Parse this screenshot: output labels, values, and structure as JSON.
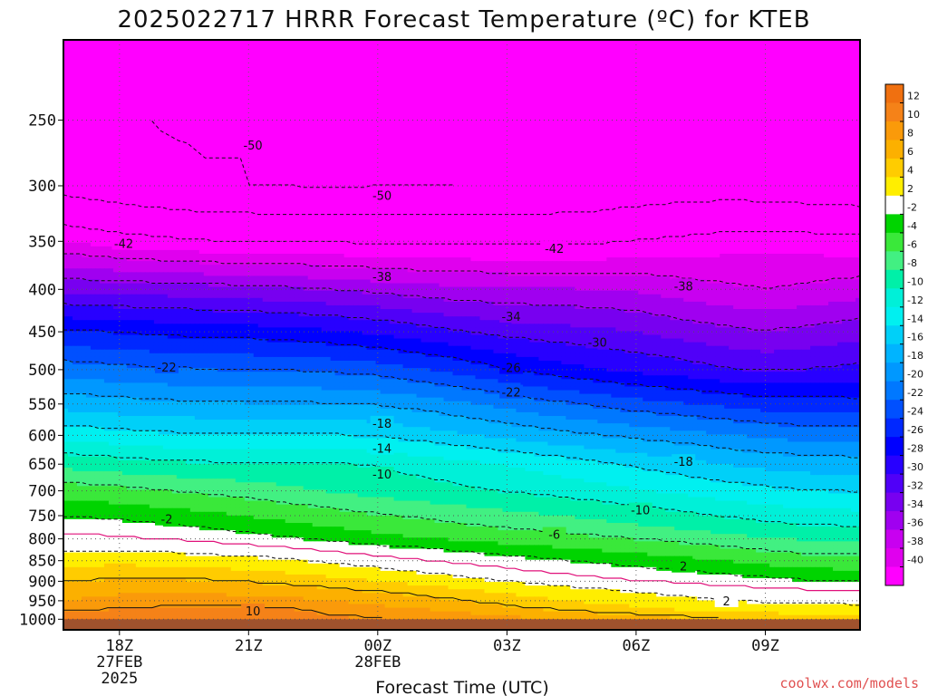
{
  "chart_data": {
    "type": "contour",
    "title": "2025022717 HRRR Forecast Temperature (ºC) for KTEB",
    "xlabel": "Forecast Time (UTC)",
    "ylabel": "",
    "credit": "coolwx.com/models",
    "y_axis": {
      "scale": "pressure",
      "range": [
        1000,
        200
      ],
      "ticks": [
        250,
        300,
        350,
        400,
        450,
        500,
        550,
        600,
        650,
        700,
        750,
        800,
        850,
        900,
        950,
        1000
      ]
    },
    "x_axis": {
      "range_hours": [
        -0.3,
        18.2
      ],
      "ticks": [
        {
          "hour": 1,
          "line1": "18Z",
          "line2": "27FEB",
          "line3": "2025"
        },
        {
          "hour": 4,
          "line1": "21Z",
          "line2": "",
          "line3": ""
        },
        {
          "hour": 7,
          "line1": "00Z",
          "line2": "28FEB",
          "line3": ""
        },
        {
          "hour": 10,
          "line1": "03Z",
          "line2": "",
          "line3": ""
        },
        {
          "hour": 13,
          "line1": "06Z",
          "line2": "",
          "line3": ""
        },
        {
          "hour": 16,
          "line1": "09Z",
          "line2": "",
          "line3": ""
        }
      ]
    },
    "grid": true,
    "colorbar": {
      "placement": "right",
      "unit": "ºC",
      "bins": [
        {
          "low": 12,
          "high": 14,
          "color": "#f07010"
        },
        {
          "low": 10,
          "high": 12,
          "color": "#f58218"
        },
        {
          "low": 8,
          "high": 10,
          "color": "#fa9a0a"
        },
        {
          "low": 6,
          "high": 8,
          "color": "#fcb000"
        },
        {
          "low": 4,
          "high": 6,
          "color": "#ffcc00"
        },
        {
          "low": 2,
          "high": 4,
          "color": "#ffee00"
        },
        {
          "low": -2,
          "high": 2,
          "color": "#ffffff"
        },
        {
          "low": -4,
          "high": -2,
          "color": "#00d400"
        },
        {
          "low": -6,
          "high": -4,
          "color": "#3ae83a"
        },
        {
          "low": -8,
          "high": -6,
          "color": "#42f082"
        },
        {
          "low": -10,
          "high": -8,
          "color": "#00f0a8"
        },
        {
          "low": -12,
          "high": -10,
          "color": "#00f0d8"
        },
        {
          "low": -14,
          "high": -12,
          "color": "#00f0f0"
        },
        {
          "low": -16,
          "high": -14,
          "color": "#00d0f8"
        },
        {
          "low": -18,
          "high": -16,
          "color": "#00b4ff"
        },
        {
          "low": -20,
          "high": -18,
          "color": "#0098ff"
        },
        {
          "low": -22,
          "high": -20,
          "color": "#0078ff"
        },
        {
          "low": -24,
          "high": -22,
          "color": "#0050ff"
        },
        {
          "low": -26,
          "high": -24,
          "color": "#0028ff"
        },
        {
          "low": -28,
          "high": -26,
          "color": "#0000ff"
        },
        {
          "low": -30,
          "high": -28,
          "color": "#2800ff"
        },
        {
          "low": -32,
          "high": -30,
          "color": "#5000f8"
        },
        {
          "low": -34,
          "high": -32,
          "color": "#7800f0"
        },
        {
          "low": -36,
          "high": -34,
          "color": "#a000f0"
        },
        {
          "low": -38,
          "high": -36,
          "color": "#c800f0"
        },
        {
          "low": -40,
          "high": -38,
          "color": "#e000ee"
        },
        {
          "low": -60,
          "high": -40,
          "color": "#ff00ff"
        }
      ],
      "tick_labels": [
        "12",
        "10",
        "8",
        "6",
        "4",
        "2",
        "-2",
        "-4",
        "-6",
        "-8",
        "-10",
        "-12",
        "-14",
        "-16",
        "-18",
        "-20",
        "-22",
        "-24",
        "-26",
        "-28",
        "-30",
        "-32",
        "-34",
        "-36",
        "-38",
        "-40"
      ]
    },
    "ground_color": "#a0522d",
    "temperature_field": {
      "hours": [
        -0.3,
        1,
        2,
        3,
        4,
        5,
        6,
        7,
        8,
        9,
        10,
        11,
        12,
        13,
        14,
        15,
        16,
        17,
        18.2
      ],
      "levels_hpa": [
        1000,
        975,
        950,
        925,
        900,
        875,
        850,
        825,
        800,
        775,
        750,
        700,
        650,
        600,
        550,
        500,
        450,
        400,
        350,
        300,
        250,
        200
      ],
      "temps_c": [
        [
          12.0,
          12.0,
          11.6,
          11.3,
          11.0,
          10.6,
          10.3,
          10.1,
          9.6,
          9.2,
          8.7,
          8.1,
          7.5,
          7.0,
          6.5,
          6.0,
          5.7,
          5.5,
          5.3
        ],
        [
          9.5,
          10.2,
          10.4,
          10.6,
          10.5,
          10.1,
          9.5,
          8.8,
          8.2,
          7.5,
          6.7,
          6.0,
          5.3,
          4.6,
          4.0,
          3.5,
          3.2,
          3.0,
          2.8
        ],
        [
          8.0,
          8.7,
          9.0,
          9.0,
          8.8,
          8.5,
          8.0,
          7.3,
          6.7,
          6.0,
          5.0,
          4.3,
          3.6,
          3.0,
          2.5,
          2.0,
          1.6,
          1.3,
          1.2
        ],
        [
          7.0,
          7.6,
          7.7,
          7.6,
          7.3,
          6.9,
          6.4,
          5.8,
          5.1,
          4.4,
          3.6,
          2.9,
          2.3,
          1.8,
          1.3,
          0.8,
          0.4,
          0.1,
          0.0
        ],
        [
          5.8,
          6.3,
          6.3,
          6.1,
          5.8,
          5.3,
          4.7,
          4.0,
          3.3,
          2.6,
          1.8,
          1.2,
          0.6,
          0.0,
          -0.5,
          -1.0,
          -1.5,
          -2.0,
          -2.2
        ],
        [
          4.5,
          4.9,
          4.8,
          4.5,
          4.2,
          3.7,
          3.0,
          2.4,
          1.7,
          1.0,
          0.3,
          -0.4,
          -1.0,
          -1.5,
          -2.0,
          -2.6,
          -3.1,
          -3.6,
          -3.8
        ],
        [
          3.3,
          3.4,
          3.2,
          2.9,
          2.6,
          2.1,
          1.4,
          0.7,
          0.0,
          -0.7,
          -1.3,
          -1.9,
          -2.4,
          -2.9,
          -3.4,
          -4.0,
          -4.6,
          -5.1,
          -5.3
        ],
        [
          1.8,
          1.8,
          1.5,
          1.1,
          0.7,
          0.2,
          -0.5,
          -1.3,
          -1.8,
          -2.4,
          -3.0,
          -3.5,
          -4.0,
          -4.5,
          -5.0,
          -5.6,
          -6.2,
          -6.7,
          -6.8
        ],
        [
          0.5,
          0.2,
          -0.2,
          -0.7,
          -1.3,
          -1.9,
          -2.6,
          -3.4,
          -3.8,
          -4.3,
          -4.8,
          -5.2,
          -5.6,
          -6.1,
          -6.6,
          -7.2,
          -7.8,
          -8.2,
          -8.4
        ],
        [
          -0.8,
          -1.3,
          -1.7,
          -2.2,
          -2.8,
          -3.4,
          -4.0,
          -4.6,
          -5.2,
          -5.7,
          -6.2,
          -6.7,
          -7.2,
          -7.7,
          -8.2,
          -8.8,
          -9.4,
          -9.8,
          -10.0
        ],
        [
          -2.2,
          -2.5,
          -3.0,
          -3.5,
          -4.1,
          -4.7,
          -5.3,
          -5.9,
          -6.4,
          -6.9,
          -7.4,
          -7.9,
          -8.4,
          -9.0,
          -9.5,
          -10.2,
          -10.8,
          -11.2,
          -11.4
        ],
        [
          -5.0,
          -5.5,
          -6.0,
          -6.5,
          -7.0,
          -7.6,
          -8.2,
          -8.8,
          -9.2,
          -9.7,
          -10.2,
          -10.7,
          -11.2,
          -11.8,
          -12.4,
          -13.0,
          -13.6,
          -14.0,
          -14.2
        ],
        [
          -8.6,
          -9.2,
          -9.6,
          -9.8,
          -9.9,
          -9.9,
          -10.0,
          -10.2,
          -10.8,
          -11.4,
          -12.1,
          -12.8,
          -13.6,
          -14.4,
          -15.2,
          -16.0,
          -16.6,
          -17.0,
          -17.2
        ],
        [
          -12.8,
          -13.3,
          -13.7,
          -13.8,
          -13.9,
          -13.9,
          -14.0,
          -14.3,
          -15.0,
          -15.8,
          -16.6,
          -17.3,
          -18.0,
          -18.6,
          -19.2,
          -19.8,
          -20.4,
          -20.8,
          -21.0
        ],
        [
          -16.8,
          -17.3,
          -17.6,
          -17.8,
          -17.9,
          -17.9,
          -18.0,
          -18.3,
          -18.9,
          -19.7,
          -20.6,
          -21.6,
          -22.4,
          -23.2,
          -23.8,
          -24.4,
          -25.0,
          -25.2,
          -25.4
        ],
        [
          -21.0,
          -21.5,
          -21.8,
          -22.0,
          -22.1,
          -22.2,
          -22.5,
          -23.0,
          -23.8,
          -24.8,
          -26.0,
          -27.0,
          -27.8,
          -28.5,
          -29.0,
          -29.8,
          -30.3,
          -30.0,
          -29.5
        ],
        [
          -25.8,
          -26.2,
          -26.6,
          -26.8,
          -27.0,
          -27.3,
          -27.8,
          -28.4,
          -29.2,
          -30.0,
          -30.8,
          -31.2,
          -31.5,
          -32.0,
          -32.8,
          -33.5,
          -34.0,
          -33.5,
          -32.8
        ],
        [
          -32.5,
          -32.8,
          -33.0,
          -33.2,
          -33.5,
          -33.8,
          -34.2,
          -34.6,
          -35.2,
          -35.6,
          -35.8,
          -35.8,
          -36.0,
          -36.3,
          -37.0,
          -37.6,
          -38.0,
          -37.6,
          -37.0
        ],
        [
          -40.0,
          -41.0,
          -41.6,
          -42.0,
          -42.2,
          -42.3,
          -42.4,
          -42.5,
          -42.6,
          -42.6,
          -42.7,
          -42.7,
          -42.5,
          -42.0,
          -41.5,
          -41.0,
          -40.8,
          -41.0,
          -41.3
        ],
        [
          -47.5,
          -48.5,
          -49.3,
          -49.8,
          -50.0,
          -50.2,
          -50.3,
          -50.2,
          -50.1,
          -50.0,
          -49.9,
          -49.6,
          -49.2,
          -48.6,
          -48.2,
          -48.0,
          -48.2,
          -48.6,
          -49.0
        ],
        [
          -48.0,
          -49.5,
          -50.2,
          -50.3,
          -50.0,
          -49.7,
          -49.4,
          -49.0,
          -48.7,
          -48.4,
          -48.2,
          -48.0,
          -48.0,
          -48.2,
          -48.6,
          -49.0,
          -49.4,
          -49.6,
          -49.8
        ],
        [
          -49.0,
          -49.0,
          -48.8,
          -48.6,
          -48.4,
          -48.2,
          -48.0,
          -48.0,
          -48.0,
          -48.1,
          -48.2,
          -48.3,
          -48.4,
          -48.5,
          -48.6,
          -48.8,
          -49.0,
          -48.8,
          -48.5
        ]
      ]
    },
    "contour_labels": [
      {
        "text": "-50",
        "hour": 4.1,
        "hpa": 268
      },
      {
        "text": "-50",
        "hour": 7.1,
        "hpa": 308
      },
      {
        "text": "-42",
        "hour": 1.1,
        "hpa": 352
      },
      {
        "text": "-42",
        "hour": 11.1,
        "hpa": 357
      },
      {
        "text": "-38",
        "hour": 7.1,
        "hpa": 386
      },
      {
        "text": "-38",
        "hour": 14.1,
        "hpa": 396
      },
      {
        "text": "-34",
        "hour": 10.1,
        "hpa": 431
      },
      {
        "text": "-30",
        "hour": 12.1,
        "hpa": 463
      },
      {
        "text": "-26",
        "hour": 10.1,
        "hpa": 497
      },
      {
        "text": "-22",
        "hour": 2.1,
        "hpa": 496
      },
      {
        "text": "-22",
        "hour": 10.1,
        "hpa": 532
      },
      {
        "text": "-18",
        "hour": 7.1,
        "hpa": 580
      },
      {
        "text": "-18",
        "hour": 14.1,
        "hpa": 645
      },
      {
        "text": "-14",
        "hour": 7.1,
        "hpa": 622
      },
      {
        "text": "-10",
        "hour": 7.1,
        "hpa": 668
      },
      {
        "text": "-10",
        "hour": 13.1,
        "hpa": 738
      },
      {
        "text": "-6",
        "hour": 11.1,
        "hpa": 790
      },
      {
        "text": "-2",
        "hour": 2.1,
        "hpa": 757
      },
      {
        "text": "2",
        "hour": 14.1,
        "hpa": 863
      },
      {
        "text": "2",
        "hour": 15.1,
        "hpa": 950
      },
      {
        "text": "10",
        "hour": 4.1,
        "hpa": 977
      }
    ]
  }
}
